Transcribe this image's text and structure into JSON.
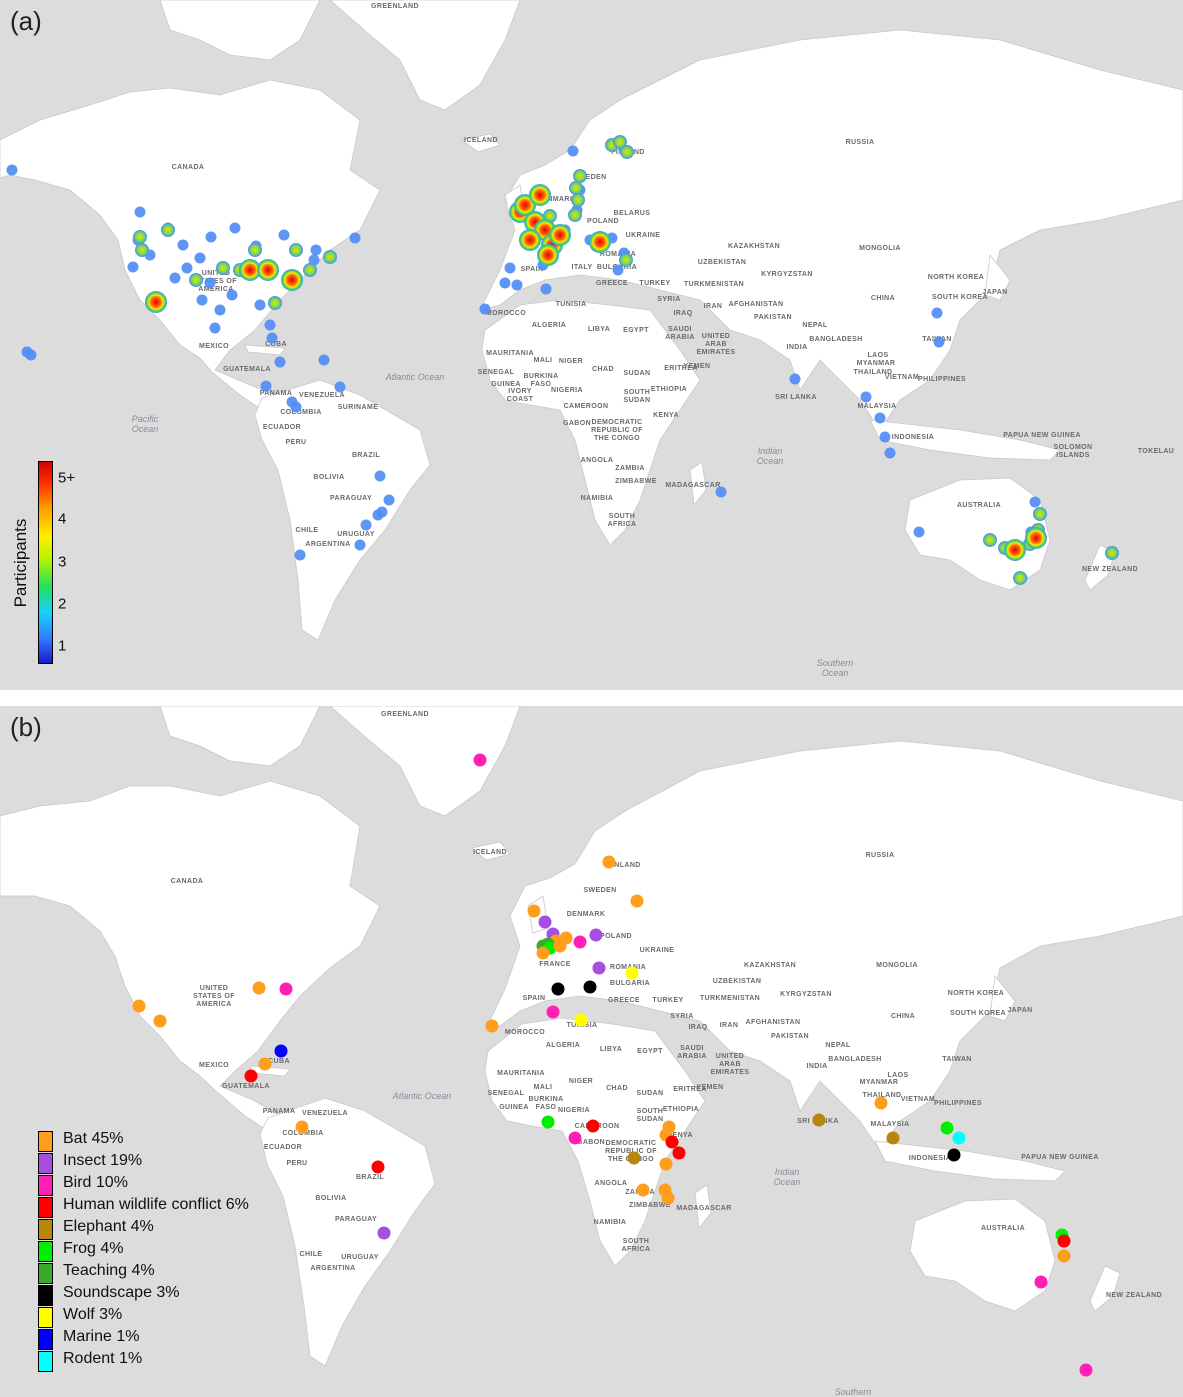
{
  "panel_a": {
    "letter": "(a)",
    "colorbar": {
      "title": "Participants",
      "ticks": [
        "5+",
        "4",
        "3",
        "2",
        "1"
      ],
      "tick_values": [
        5,
        4,
        3,
        2,
        1
      ]
    },
    "country_labels": [
      "GREENLAND",
      "ICELAND",
      "CANADA",
      "RUSSIA",
      "FINLAND",
      "SWEDEN",
      "DENMARK",
      "POLAND",
      "BELARUS",
      "UKRAINE",
      "ROMANIA",
      "BULGARIA",
      "ITALY",
      "GREECE",
      "TURKEY",
      "SPAIN",
      "KAZAKHSTAN",
      "MONGOLIA",
      "UZBEKISTAN",
      "KYRGYZSTAN",
      "TURKMENISTAN",
      "NORTH KOREA",
      "SOUTH KOREA",
      "JAPAN",
      "CHINA",
      "SYRIA",
      "IRAQ",
      "IRAN",
      "AFGHANISTAN",
      "PAKISTAN",
      "NEPAL",
      "INDIA",
      "BANGLADESH",
      "MYANMAR",
      "LAOS",
      "THAILAND",
      "VIETNAM",
      "PHILIPPINES",
      "TAIWAN",
      "MALAYSIA",
      "SRI LANKA",
      "INDONESIA",
      "PAPUA NEW GUINEA",
      "SOLOMON ISLANDS",
      "TOKELAU",
      "AUSTRALIA",
      "NEW ZEALAND",
      "UNITED STATES OF AMERICA",
      "MEXICO",
      "CUBA",
      "GUATEMALA",
      "PANAMA",
      "VENEZUELA",
      "COLOMBIA",
      "SURINAME",
      "ECUADOR",
      "PERU",
      "BRAZIL",
      "BOLIVIA",
      "PARAGUAY",
      "CHILE",
      "URUGUAY",
      "ARGENTINA",
      "MOROCCO",
      "ALGERIA",
      "TUNISIA",
      "LIBYA",
      "EGYPT",
      "MAURITANIA",
      "MALI",
      "NIGER",
      "CHAD",
      "SUDAN",
      "SENEGAL",
      "GUINEA",
      "BURKINA FASO",
      "IVORY COAST",
      "NIGERIA",
      "CAMEROON",
      "GABON",
      "DEMOCRATIC REPUBLIC OF THE CONGO",
      "ERITREA",
      "ETHIOPIA",
      "SOUTH SUDAN",
      "KENYA",
      "ANGOLA",
      "ZAMBIA",
      "ZIMBABWE",
      "NAMIBIA",
      "SOUTH AFRICA",
      "MADAGASCAR",
      "SAUDI ARABIA",
      "UNITED ARAB EMIRATES",
      "YEMEN"
    ],
    "ocean_labels": [
      "Atlantic Ocean",
      "Pacific Ocean",
      "Indian Ocean",
      "Southern Ocean"
    ]
  },
  "panel_b": {
    "letter": "(b)",
    "legend": [
      {
        "label": "Bat 45%",
        "color": "#ff9d1c"
      },
      {
        "label": "Insect 19%",
        "color": "#a54ee0"
      },
      {
        "label": "Bird 10%",
        "color": "#ff1fb4"
      },
      {
        "label": "Human wildlife conflict 6%",
        "color": "#ff0000"
      },
      {
        "label": "Elephant 4%",
        "color": "#b8860b"
      },
      {
        "label": "Frog 4%",
        "color": "#00ee00"
      },
      {
        "label": "Teaching 4%",
        "color": "#3aaa2a"
      },
      {
        "label": "Soundscape 3%",
        "color": "#000000"
      },
      {
        "label": "Wolf 3%",
        "color": "#ffff00"
      },
      {
        "label": "Marine 1%",
        "color": "#0000ff"
      },
      {
        "label": "Rodent 1%",
        "color": "#00ffff"
      }
    ],
    "country_labels": [
      "GREENLAND",
      "ICELAND",
      "CANADA",
      "RUSSIA",
      "FINLAND",
      "SWEDEN",
      "DENMARK",
      "POLAND",
      "UKRAINE",
      "ROMANIA",
      "BULGARIA",
      "FRANCE",
      "SPAIN",
      "GREECE",
      "TURKEY",
      "KAZAKHSTAN",
      "MONGOLIA",
      "UZBEKISTAN",
      "KYRGYZSTAN",
      "TURKMENISTAN",
      "NORTH KOREA",
      "SOUTH KOREA",
      "JAPAN",
      "CHINA",
      "SYRIA",
      "IRAQ",
      "IRAN",
      "AFGHANISTAN",
      "PAKISTAN",
      "NEPAL",
      "INDIA",
      "BANGLADESH",
      "MYANMAR",
      "LAOS",
      "THAILAND",
      "VIETNAM",
      "PHILIPPINES",
      "TAIWAN",
      "MALAYSIA",
      "SRI LANKA",
      "INDONESIA",
      "PAPUA NEW GUINEA",
      "AUSTRALIA",
      "NEW ZEALAND",
      "UNITED STATES OF AMERICA",
      "MEXICO",
      "CUBA",
      "GUATEMALA",
      "PANAMA",
      "VENEZUELA",
      "COLOMBIA",
      "ECUADOR",
      "PERU",
      "BRAZIL",
      "BOLIVIA",
      "PARAGUAY",
      "CHILE",
      "URUGUAY",
      "ARGENTINA",
      "MOROCCO",
      "ALGERIA",
      "TUNISIA",
      "LIBYA",
      "EGYPT",
      "MAURITANIA",
      "MALI",
      "NIGER",
      "CHAD",
      "SUDAN",
      "SENEGAL",
      "GUINEA",
      "BURKINA FASO",
      "NIGERIA",
      "CAMEROON",
      "GABON",
      "DEMOCRATIC REPUBLIC OF THE CONGO",
      "ERITREA",
      "ETHIOPIA",
      "SOUTH SUDAN",
      "KENYA",
      "ANGOLA",
      "ZAMBIA",
      "ZIMBABWE",
      "NAMIBIA",
      "SOUTH AFRICA",
      "MADAGASCAR",
      "SAUDI ARABIA",
      "UNITED ARAB EMIRATES",
      "YEMEN"
    ],
    "ocean_labels": [
      "Atlantic Ocean",
      "Indian Ocean",
      "Southern"
    ]
  },
  "colors": {
    "land": "#ffffff",
    "ocean": "#dcdcdc",
    "border": "#c4c4c4"
  }
}
